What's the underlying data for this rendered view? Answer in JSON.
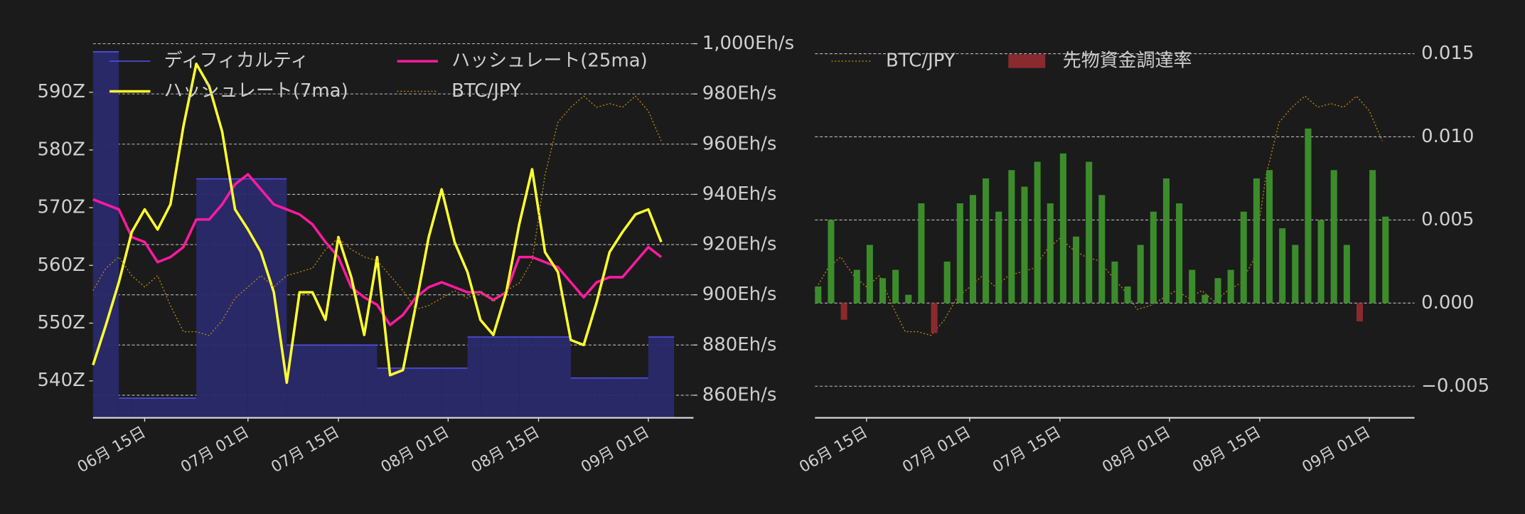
{
  "chart_data": [
    {
      "type": "line",
      "x": [
        "06-07",
        "06-09",
        "06-11",
        "06-13",
        "06-15",
        "06-17",
        "06-19",
        "06-21",
        "06-23",
        "06-25",
        "06-27",
        "06-29",
        "07-01",
        "07-03",
        "07-05",
        "07-07",
        "07-09",
        "07-11",
        "07-13",
        "07-15",
        "07-17",
        "07-19",
        "07-21",
        "07-23",
        "07-25",
        "07-27",
        "07-29",
        "07-31",
        "08-02",
        "08-04",
        "08-06",
        "08-08",
        "08-10",
        "08-12",
        "08-14",
        "08-16",
        "08-18",
        "08-20",
        "08-22",
        "08-24",
        "08-26",
        "08-28",
        "08-30",
        "09-01",
        "09-03"
      ],
      "xlim": [
        "06-07",
        "09-08"
      ],
      "xticks": [
        {
          "value": "06-15",
          "label": "06月 15日"
        },
        {
          "value": "07-01",
          "label": "07月 01日"
        },
        {
          "value": "07-15",
          "label": "07月 15日"
        },
        {
          "value": "08-01",
          "label": "08月 01日"
        },
        {
          "value": "08-15",
          "label": "08月 15日"
        },
        {
          "value": "09-01",
          "label": "09月 01日"
        }
      ],
      "ylim": [
        533.6,
        598.4
      ],
      "yticks": [
        {
          "value": 540,
          "label": "540Z"
        },
        {
          "value": 550,
          "label": "550Z"
        },
        {
          "value": 560,
          "label": "560Z"
        },
        {
          "value": 570,
          "label": "570Z"
        },
        {
          "value": 580,
          "label": "580Z"
        },
        {
          "value": 590,
          "label": "590Z"
        }
      ],
      "y2lim": [
        851,
        1000
      ],
      "y2ticks": [
        {
          "value": 860,
          "label": "860Eh/s"
        },
        {
          "value": 880,
          "label": "880Eh/s"
        },
        {
          "value": 900,
          "label": "900Eh/s"
        },
        {
          "value": 920,
          "label": "920Eh/s"
        },
        {
          "value": 940,
          "label": "940Eh/s"
        },
        {
          "value": 960,
          "label": "960Eh/s"
        },
        {
          "value": 980,
          "label": "980Eh/s"
        },
        {
          "value": 1000,
          "label": "1,000Eh/s"
        }
      ],
      "btc_lim": [
        0,
        100
      ],
      "grid": true,
      "legend": "upper left",
      "series": [
        {
          "name": "ディフィカルティ",
          "style": "step-area",
          "color": "#4f4fe0",
          "values": [
            597,
            597,
            537,
            537,
            537,
            537,
            537,
            537,
            575,
            575,
            575,
            575,
            575,
            575,
            575,
            546.2,
            546.2,
            546.2,
            546.2,
            546.2,
            546.2,
            546.2,
            542.2,
            542.2,
            542.2,
            542.2,
            542.2,
            542.2,
            542.2,
            547.6,
            547.6,
            547.6,
            547.6,
            547.6,
            547.6,
            547.6,
            547.6,
            540.5,
            540.5,
            540.5,
            540.5,
            540.5,
            540.5,
            547.6,
            547.6
          ]
        },
        {
          "name": "ハッシュレート(25ma)",
          "style": "solid",
          "axis": "y2",
          "color": "#ff1aa0",
          "values": [
            938,
            936,
            934,
            923,
            921,
            913,
            915,
            919,
            930,
            930,
            936,
            944,
            948,
            942,
            936,
            934,
            932,
            928,
            921,
            915,
            903,
            899,
            896,
            888,
            892,
            899,
            903,
            905,
            903,
            901,
            901,
            898,
            901,
            915,
            915,
            913,
            911,
            905,
            899,
            905,
            907,
            907,
            913,
            919,
            915
          ]
        },
        {
          "name": "ハッシュレート(7ma)",
          "style": "solid",
          "axis": "y2",
          "color": "#ffff2e",
          "values": [
            872,
            888,
            905,
            925,
            934,
            926,
            936,
            967,
            992,
            983,
            965,
            934,
            926,
            917,
            901,
            865,
            901,
            901,
            890,
            923,
            907,
            884,
            915,
            868,
            870,
            896,
            923,
            942,
            921,
            909,
            890,
            884,
            901,
            928,
            950,
            917,
            909,
            882,
            880,
            897,
            917,
            925,
            932,
            934,
            921
          ]
        },
        {
          "name": "BTC/JPY",
          "style": "dotted",
          "axis": "btc",
          "color": "#b8860b",
          "values": [
            34,
            40,
            43,
            38,
            35,
            38,
            30,
            23,
            23,
            22,
            26,
            32,
            35,
            38,
            35,
            38,
            39,
            40,
            45,
            48,
            45,
            43,
            42,
            38,
            34,
            29,
            30,
            32,
            34,
            32,
            34,
            31,
            34,
            36,
            42,
            65,
            79,
            83,
            86,
            83,
            84,
            83,
            86,
            82,
            74
          ]
        }
      ]
    },
    {
      "type": "bar",
      "x": [
        "06-07",
        "06-09",
        "06-11",
        "06-13",
        "06-15",
        "06-17",
        "06-19",
        "06-21",
        "06-23",
        "06-25",
        "06-27",
        "06-29",
        "07-01",
        "07-03",
        "07-05",
        "07-07",
        "07-09",
        "07-11",
        "07-13",
        "07-15",
        "07-17",
        "07-19",
        "07-21",
        "07-23",
        "07-25",
        "07-27",
        "07-29",
        "07-31",
        "08-02",
        "08-04",
        "08-06",
        "08-08",
        "08-10",
        "08-12",
        "08-14",
        "08-16",
        "08-18",
        "08-20",
        "08-22",
        "08-24",
        "08-26",
        "08-28",
        "08-30",
        "09-01",
        "09-03"
      ],
      "xlim": [
        "06-07",
        "09-08"
      ],
      "xticks": [
        {
          "value": "06-15",
          "label": "06月 15日"
        },
        {
          "value": "07-01",
          "label": "07月 01日"
        },
        {
          "value": "07-15",
          "label": "07月 15日"
        },
        {
          "value": "08-01",
          "label": "08月 01日"
        },
        {
          "value": "08-15",
          "label": "08月 15日"
        },
        {
          "value": "09-01",
          "label": "09月 01日"
        }
      ],
      "ylim": [
        -0.0069,
        0.0156
      ],
      "yticks": [
        {
          "value": -0.005,
          "label": "−0.005"
        },
        {
          "value": 0,
          "label": "0.000"
        },
        {
          "value": 0.005,
          "label": "0.005"
        },
        {
          "value": 0.01,
          "label": "0.010"
        },
        {
          "value": 0.015,
          "label": "0.015"
        }
      ],
      "btc_lim": [
        0,
        100
      ],
      "grid": true,
      "legend": "upper left",
      "series": [
        {
          "name": "BTC/JPY",
          "style": "dotted",
          "axis": "btc",
          "color": "#b8860b",
          "values": [
            34,
            40,
            43,
            38,
            35,
            38,
            30,
            23,
            23,
            22,
            26,
            32,
            35,
            38,
            35,
            38,
            39,
            40,
            45,
            48,
            45,
            43,
            42,
            38,
            34,
            29,
            30,
            32,
            34,
            32,
            34,
            31,
            34,
            36,
            42,
            65,
            79,
            83,
            86,
            83,
            84,
            83,
            86,
            82,
            74
          ]
        },
        {
          "name": "先物資金調達率",
          "style": "bar",
          "color": "#8b2a2e",
          "positive_color": "#3c8c2c",
          "values": [
            0.001,
            0.005,
            -0.001,
            0.002,
            0.0035,
            0.0015,
            0.002,
            0.0005,
            0.006,
            -0.0018,
            0.0025,
            0.006,
            0.0065,
            0.0075,
            0.0055,
            0.008,
            0.007,
            0.0085,
            0.006,
            0.009,
            0.004,
            0.0085,
            0.0065,
            0.0025,
            0.001,
            0.0035,
            0.0055,
            0.0075,
            0.006,
            0.002,
            0.0005,
            0.0015,
            0.002,
            0.0055,
            0.0075,
            0.008,
            0.0045,
            0.0035,
            0.0105,
            0.005,
            0.008,
            0.0035,
            -0.0011,
            0.008,
            0.0052
          ]
        }
      ]
    }
  ]
}
